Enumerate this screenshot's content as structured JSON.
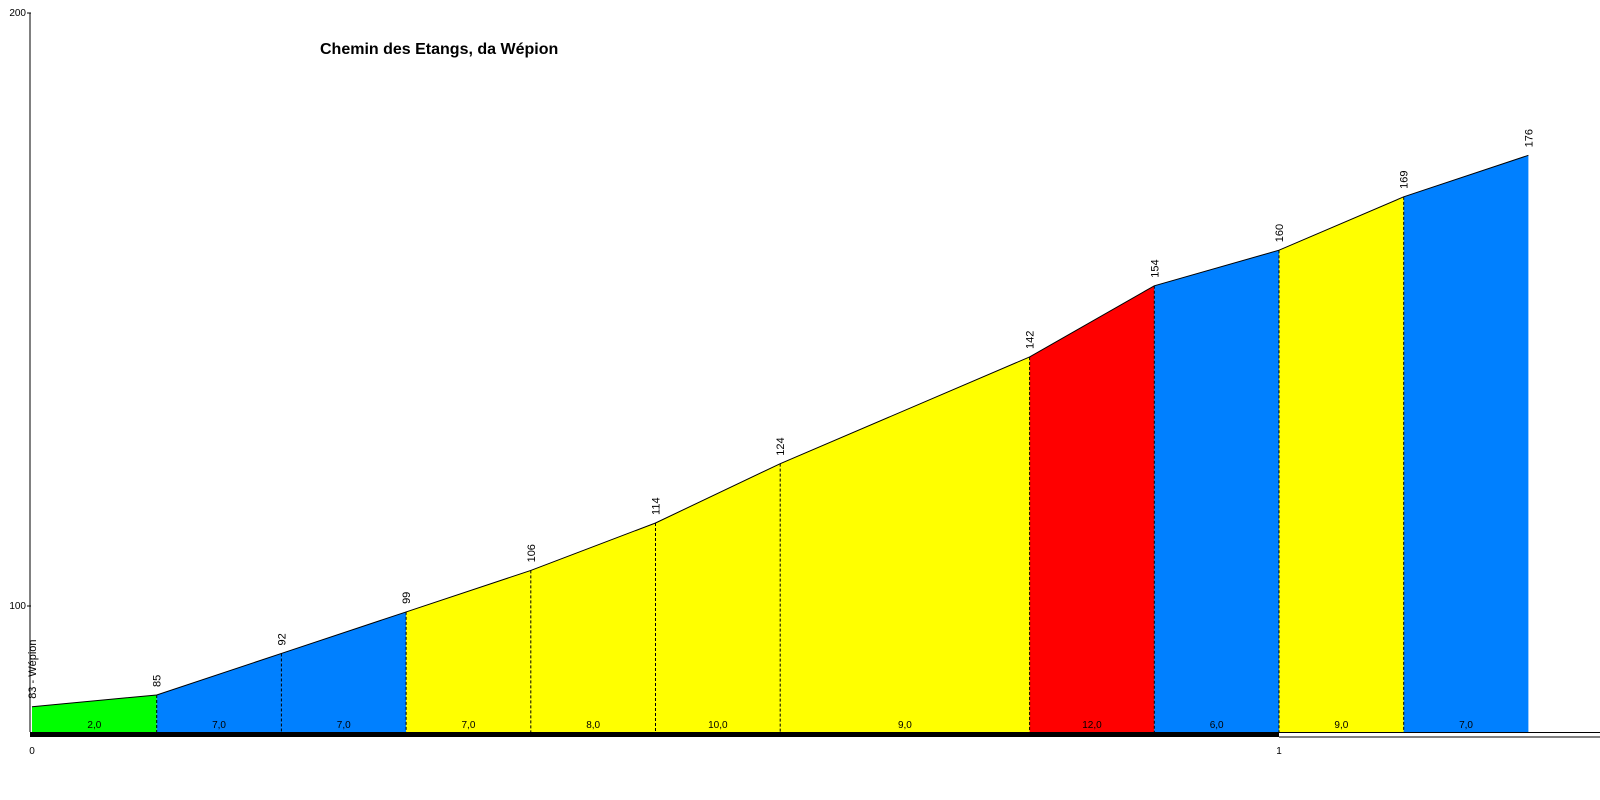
{
  "chart_data": {
    "type": "area",
    "title": "Chemin des Etangs, da Wépion",
    "xlabel": "",
    "ylabel": "",
    "xlim": [
      0,
      1.35
    ],
    "ylim": [
      0,
      200
    ],
    "x_ticks": [
      "0",
      "1"
    ],
    "y_ticks": [
      "100",
      "200"
    ],
    "start_label": "83 - Wépion",
    "points": [
      {
        "x": 0.0,
        "elev": 83
      },
      {
        "x": 0.1,
        "elev": 85
      },
      {
        "x": 0.2,
        "elev": 92
      },
      {
        "x": 0.3,
        "elev": 99
      },
      {
        "x": 0.4,
        "elev": 106
      },
      {
        "x": 0.5,
        "elev": 114
      },
      {
        "x": 0.6,
        "elev": 124
      },
      {
        "x": 0.8,
        "elev": 142
      },
      {
        "x": 0.9,
        "elev": 154
      },
      {
        "x": 1.0,
        "elev": 160
      },
      {
        "x": 1.1,
        "elev": 169
      },
      {
        "x": 1.2,
        "elev": 176
      }
    ],
    "elev_labels": [
      "83 - Wépion",
      "85",
      "92",
      "99",
      "106",
      "114",
      "124",
      "142",
      "154",
      "160",
      "169",
      "176"
    ],
    "segments": [
      {
        "gradient": "2,0",
        "color": "#00ff00"
      },
      {
        "gradient": "7,0",
        "color": "#0080ff"
      },
      {
        "gradient": "7,0",
        "color": "#0080ff"
      },
      {
        "gradient": "7,0",
        "color": "#ffff00"
      },
      {
        "gradient": "8,0",
        "color": "#ffff00"
      },
      {
        "gradient": "10,0",
        "color": "#ffff00"
      },
      {
        "gradient": "9,0",
        "color": "#ffff00"
      },
      {
        "gradient": "12,0",
        "color": "#ff0000"
      },
      {
        "gradient": "6,0",
        "color": "#0080ff"
      },
      {
        "gradient": "9,0",
        "color": "#ffff00"
      },
      {
        "gradient": "7,0",
        "color": "#0080ff"
      }
    ],
    "km_bar_color": "#000000"
  }
}
